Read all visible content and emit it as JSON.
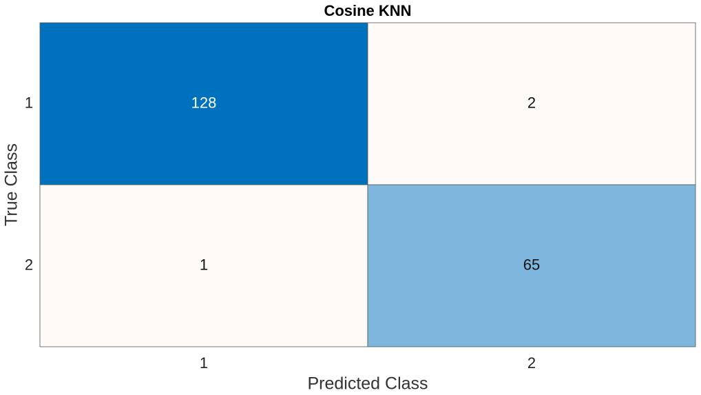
{
  "chart_data": {
    "type": "confusion_matrix",
    "title": "Cosine KNN",
    "x_label": "Predicted Class",
    "y_label": "True Class",
    "x_categories": [
      "1",
      "2"
    ],
    "y_categories": [
      "1",
      "2"
    ],
    "values": [
      [
        128,
        2
      ],
      [
        1,
        65
      ]
    ],
    "diagonal_color": "#0072bd",
    "off_diagonal_color": "#d95319"
  }
}
